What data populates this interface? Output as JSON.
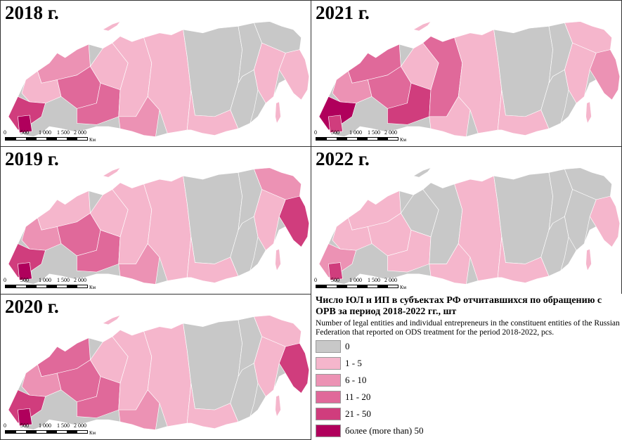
{
  "panels": [
    {
      "id": "p2018",
      "year": "2018 г."
    },
    {
      "id": "p2021",
      "year": "2021 г."
    },
    {
      "id": "p2019",
      "year": "2019 г."
    },
    {
      "id": "p2022",
      "year": "2022 г."
    },
    {
      "id": "p2020",
      "year": "2020 г."
    }
  ],
  "scalebar": {
    "ticks": [
      "0",
      "500",
      "1 000",
      "1 500",
      "2 000"
    ],
    "unit": "Км"
  },
  "legend": {
    "title": "Число ЮЛ и ИП в субъектах РФ отчитавшихся по обращению с ОРВ за период 2018-2022 гг., шт",
    "subtitle": "Number of legal entities and individual entrepreneurs in the constituent entities of the Russian Federation that reported on ODS treatment for the period 2018-2022, pcs.",
    "classes": [
      {
        "label": "0",
        "color": "#c8c8c8"
      },
      {
        "label": "1 - 5",
        "color": "#f5b6cc"
      },
      {
        "label": "6 - 10",
        "color": "#ec92b4"
      },
      {
        "label": "11 - 20",
        "color": "#e0699a"
      },
      {
        "label": "21 - 50",
        "color": "#d03d7d"
      },
      {
        "label": "более (more than) 50",
        "color": "#b0005c"
      }
    ]
  }
}
